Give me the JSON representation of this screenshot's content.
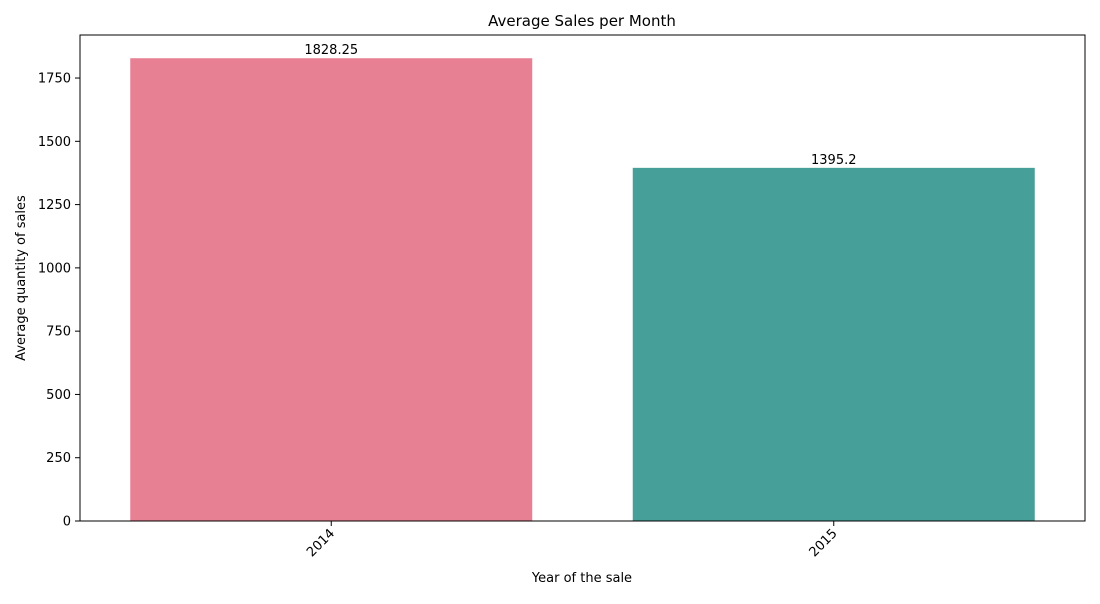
{
  "chart_data": {
    "type": "bar",
    "title": "Average Sales per Month",
    "xlabel": "Year of the sale",
    "ylabel": "Average quantity of sales",
    "categories": [
      "2014",
      "2015"
    ],
    "values": [
      1828.25,
      1395.2
    ],
    "value_labels": [
      "1828.25",
      "1395.2"
    ],
    "bar_colors": [
      "#e88093",
      "#479f9a"
    ],
    "ylim": [
      0,
      1920
    ],
    "yticks": [
      0,
      250,
      500,
      750,
      1000,
      1250,
      1500,
      1750
    ],
    "ytick_labels": [
      "0",
      "250",
      "500",
      "750",
      "1000",
      "1250",
      "1500",
      "1750"
    ],
    "xtick_rotation_deg": 45,
    "grid": false,
    "legend": "none"
  }
}
